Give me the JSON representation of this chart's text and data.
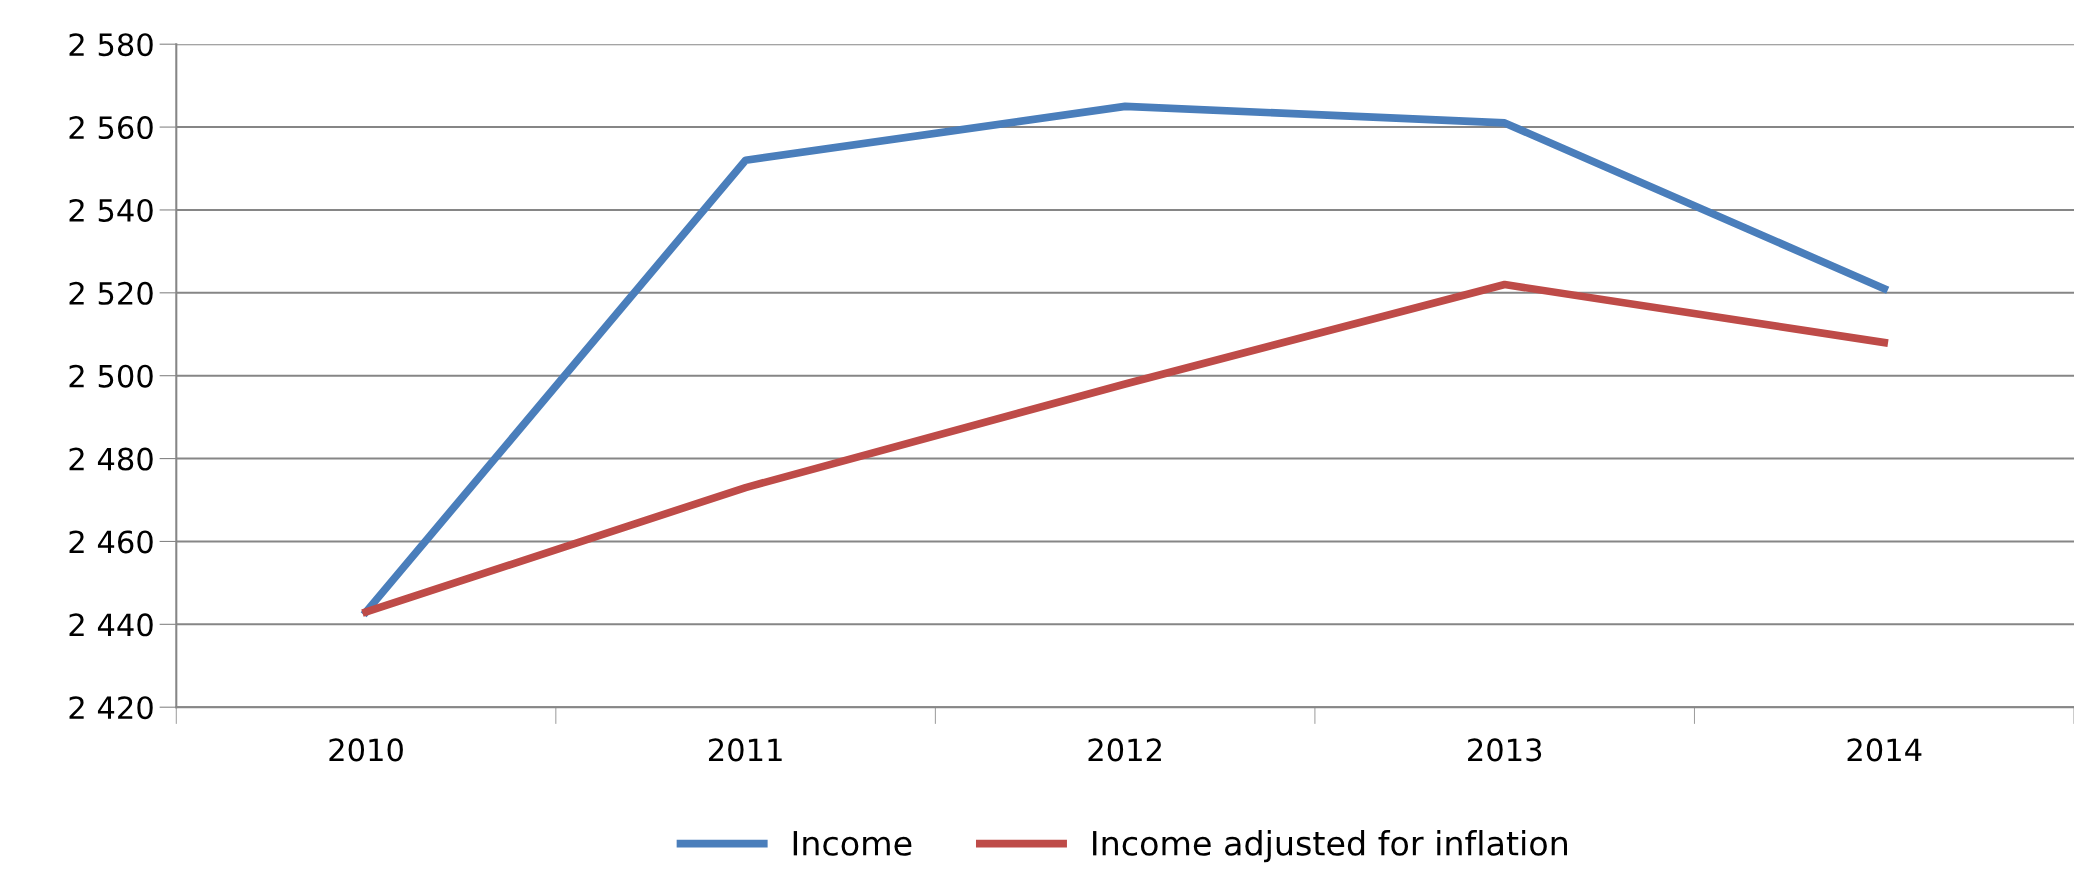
{
  "chart_data": {
    "type": "line",
    "categories": [
      "2010",
      "2011",
      "2012",
      "2013",
      "2014"
    ],
    "series": [
      {
        "name": "Income",
        "color": "#4a7ebb",
        "values": [
          2443,
          2552,
          2565,
          2561,
          2521
        ]
      },
      {
        "name": "Income adjusted for inflation",
        "color": "#be4b48",
        "values": [
          2443,
          2473,
          2498,
          2522,
          2508
        ]
      }
    ],
    "ylim": [
      2420,
      2580
    ],
    "yticks": [
      {
        "value": 2420,
        "label": "2 420"
      },
      {
        "value": 2440,
        "label": "2 440"
      },
      {
        "value": 2460,
        "label": "2 460"
      },
      {
        "value": 2480,
        "label": "2 480"
      },
      {
        "value": 2500,
        "label": "2 500"
      },
      {
        "value": 2520,
        "label": "2 520"
      },
      {
        "value": 2540,
        "label": "2 540"
      },
      {
        "value": 2560,
        "label": "2 560"
      },
      {
        "value": 2580,
        "label": "2 580"
      }
    ],
    "grid": "y",
    "legend": "bottom",
    "marker": "none",
    "line_style": "solid"
  }
}
